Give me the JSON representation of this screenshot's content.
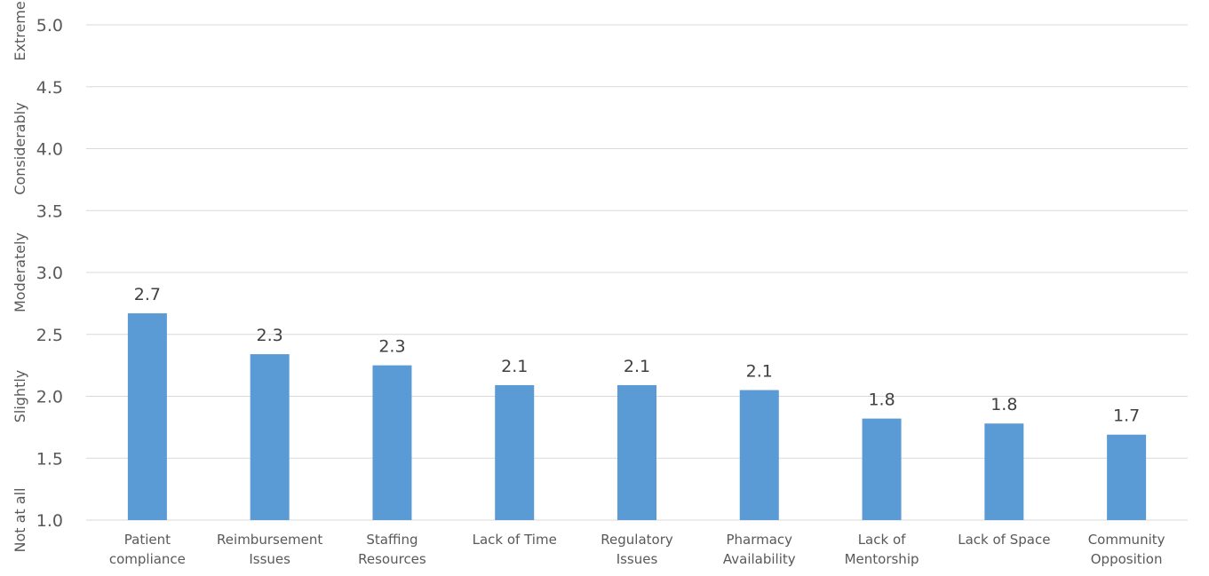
{
  "chart_data": {
    "type": "bar",
    "categories": [
      [
        "Patient",
        "compliance"
      ],
      [
        "Reimbursement",
        "Issues"
      ],
      [
        "Staffing",
        "Resources"
      ],
      [
        "Lack of Time"
      ],
      [
        "Regulatory",
        "Issues"
      ],
      [
        "Pharmacy",
        "Availability"
      ],
      [
        "Lack of",
        "Mentorship"
      ],
      [
        "Lack of Space"
      ],
      [
        "Community",
        "Opposition"
      ]
    ],
    "values": [
      2.67,
      2.34,
      2.25,
      2.09,
      2.09,
      2.05,
      1.82,
      1.78,
      1.69
    ],
    "data_labels": [
      "2.7",
      "2.3",
      "2.3",
      "2.1",
      "2.1",
      "2.1",
      "1.8",
      "1.8",
      "1.7"
    ],
    "ylim": [
      1.0,
      5.0
    ],
    "yticks": [
      "1.0",
      "1.5",
      "2.0",
      "2.5",
      "3.0",
      "3.5",
      "4.0",
      "4.5",
      "5.0"
    ],
    "ytick_values": [
      1.0,
      1.5,
      2.0,
      2.5,
      3.0,
      3.5,
      4.0,
      4.5,
      5.0
    ],
    "rating_scale_labels": [
      {
        "label": "Not at all",
        "value": 1.0
      },
      {
        "label": "Slightly",
        "value": 2.0
      },
      {
        "label": "Moderately",
        "value": 3.0
      },
      {
        "label": "Considerably",
        "value": 4.0
      },
      {
        "label": "Extremely",
        "value": 5.0
      }
    ],
    "bar_color": "#5b9bd5",
    "grid": true,
    "legend": "none",
    "title": "",
    "xlabel": "",
    "ylabel": ""
  }
}
